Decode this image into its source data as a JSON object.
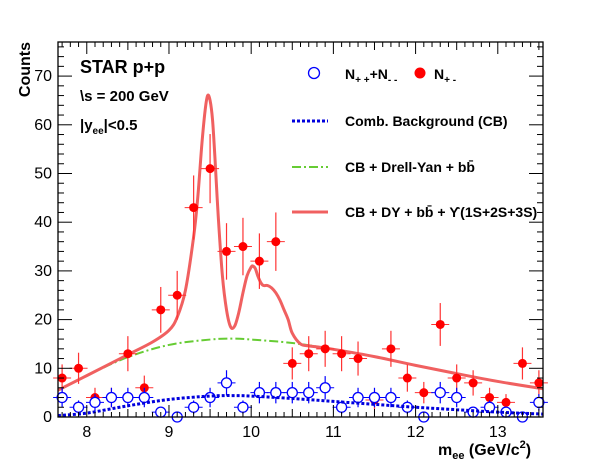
{
  "chart_data": {
    "type": "scatter",
    "title": "",
    "xlabel": {
      "main": "m",
      "sub": "ee",
      "unit": " (GeV/c",
      "unit_sup": "2",
      "unit_end": ")"
    },
    "ylabel": "Counts",
    "xlim": [
      7.65,
      13.55
    ],
    "ylim": [
      0,
      77
    ],
    "xticks": [
      8,
      9,
      10,
      11,
      12,
      13
    ],
    "yticks": [
      0,
      10,
      20,
      30,
      40,
      50,
      60,
      70
    ],
    "annotations": {
      "experiment": "STAR p+p",
      "energy": "\\s = 200 GeV",
      "rapidity_pre": "|y",
      "rapidity_sub": "ee",
      "rapidity_post": "|<0.5"
    },
    "legend": {
      "open_label": {
        "pre": "N",
        "sub": "+ +",
        "mid": "+N",
        "sub2": "- -"
      },
      "filled_label": {
        "pre": "N",
        "sub": "+ -"
      },
      "cb_label": "Comb. Background (CB)",
      "dy_label": "CB + Drell-Yan + bb̄",
      "total_label": "CB + DY + bb̄ + ϒ(1S+2S+3S)"
    },
    "colors": {
      "unlike": "#ff0000",
      "like": "#0000ff",
      "total_curve": "#f06060",
      "dy_curve": "#66cc33",
      "cb_curve": "#0000dd",
      "error_bar": "#ff3333"
    },
    "series": [
      {
        "name": "N+-",
        "marker": "filled-circle",
        "x": [
          7.7,
          7.9,
          8.1,
          8.3,
          8.5,
          8.7,
          8.9,
          9.1,
          9.3,
          9.5,
          9.7,
          9.9,
          10.1,
          10.3,
          10.5,
          10.7,
          10.9,
          11.1,
          11.3,
          11.5,
          11.7,
          11.9,
          12.1,
          12.3,
          12.5,
          12.7,
          12.9,
          13.1,
          13.3,
          13.5
        ],
        "y": [
          8,
          10,
          4,
          4,
          13,
          6,
          22,
          25,
          43,
          51,
          34,
          35,
          32,
          36,
          11,
          13,
          14,
          13,
          12,
          3.5,
          14,
          8,
          5,
          19,
          8,
          7,
          4,
          3,
          11,
          7
        ],
        "err": [
          2.8,
          3.2,
          2,
          2,
          3.6,
          2.5,
          4.7,
          5,
          6.6,
          7.1,
          5.8,
          5.9,
          5.7,
          6,
          3.3,
          3.6,
          3.7,
          3.6,
          3.5,
          1.9,
          3.7,
          2.8,
          2.2,
          4.4,
          2.8,
          2.6,
          2,
          1.7,
          3.3,
          2.6
        ]
      },
      {
        "name": "N++ + N--",
        "marker": "open-circle",
        "x": [
          7.7,
          7.9,
          8.1,
          8.3,
          8.5,
          8.7,
          8.9,
          9.1,
          9.3,
          9.5,
          9.7,
          9.9,
          10.1,
          10.3,
          10.5,
          10.7,
          10.9,
          11.1,
          11.3,
          11.5,
          11.7,
          11.9,
          12.1,
          12.3,
          12.5,
          12.7,
          12.9,
          13.1,
          13.3,
          13.5
        ],
        "y": [
          4,
          2,
          3,
          4,
          4,
          4,
          1,
          0,
          2,
          4,
          7,
          2,
          5,
          5,
          5,
          5,
          6,
          2,
          4,
          4,
          4,
          2,
          0,
          5,
          4,
          1,
          2,
          1,
          0,
          3
        ],
        "err": [
          2,
          1.4,
          1.7,
          2,
          2,
          2,
          1,
          0.6,
          1.4,
          2,
          2.6,
          1.4,
          2.2,
          2.2,
          2.2,
          2.2,
          2.4,
          1.4,
          2,
          2,
          2,
          1.4,
          0.6,
          2.2,
          2,
          1,
          1.4,
          1,
          0.6,
          1.7
        ]
      }
    ],
    "curves": [
      {
        "name": "Comb. Background (CB)",
        "style": "dotted",
        "x": [
          7.65,
          8,
          8.5,
          9,
          9.5,
          9.8,
          10,
          10.5,
          11,
          11.5,
          12,
          12.5,
          13,
          13.55
        ],
        "y": [
          0.3,
          0.8,
          2.3,
          3.6,
          4.3,
          4.4,
          4.3,
          3.8,
          3.2,
          2.6,
          2,
          1.5,
          1,
          0.6
        ]
      },
      {
        "name": "CB + Drell-Yan + bb",
        "style": "dash-dot",
        "x": [
          7.65,
          8,
          8.5,
          9,
          9.5,
          9.8,
          10,
          10.5,
          11,
          11.5,
          12,
          12.5,
          13,
          13.55
        ],
        "y": [
          5.5,
          8.5,
          12.3,
          14.8,
          15.9,
          16.1,
          15.9,
          15.2,
          13.9,
          12.4,
          10.6,
          8.9,
          7.3,
          5.8
        ]
      },
      {
        "name": "CB + DY + bb + Upsilon(1S+2S+3S)",
        "style": "solid",
        "x": [
          7.65,
          8,
          8.5,
          8.8,
          9,
          9.1,
          9.2,
          9.3,
          9.35,
          9.4,
          9.44,
          9.47,
          9.5,
          9.53,
          9.56,
          9.6,
          9.65,
          9.7,
          9.75,
          9.8,
          9.85,
          9.9,
          9.95,
          10,
          10.02,
          10.05,
          10.08,
          10.12,
          10.15,
          10.2,
          10.25,
          10.3,
          10.35,
          10.4,
          10.45,
          10.5,
          10.6,
          10.7,
          10.8,
          11,
          11.5,
          12,
          12.5,
          13,
          13.55
        ],
        "y": [
          5.5,
          8.5,
          12.8,
          15.4,
          17.8,
          20.5,
          26,
          37,
          45,
          56,
          63,
          66,
          65,
          61,
          53,
          41,
          29,
          22,
          18.5,
          18.7,
          21.5,
          25.5,
          29,
          30.8,
          31,
          30.5,
          29,
          27.5,
          27,
          27,
          26.5,
          25.5,
          24,
          22,
          20,
          17.2,
          15,
          14.6,
          14.4,
          13.9,
          12.4,
          10.6,
          8.9,
          7.3,
          5.8
        ]
      }
    ]
  }
}
